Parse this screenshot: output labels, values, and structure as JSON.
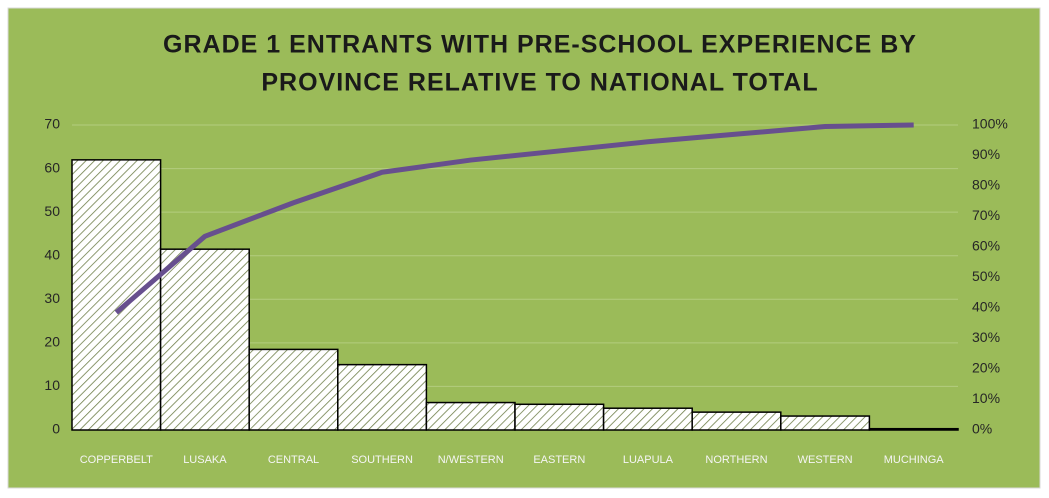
{
  "chart_data": {
    "type": "pareto",
    "title": [
      "GRADE 1 ENTRANTS WITH PRE-SCHOOL EXPERIENCE BY",
      "PROVINCE RELATIVE TO NATIONAL TOTAL"
    ],
    "categories": [
      "COPPERBELT",
      "LUSAKA",
      "CENTRAL",
      "SOUTHERN",
      "N/WESTERN",
      "EASTERN",
      "LUAPULA",
      "NORTHERN",
      "WESTERN",
      "MUCHINGA"
    ],
    "series": [
      {
        "type": "bar",
        "color": "#ffffff",
        "values": [
          62,
          41.5,
          18.5,
          15,
          6.3,
          5.9,
          5,
          4.1,
          3.2,
          0.3
        ]
      },
      {
        "type": "line",
        "axis": "y2",
        "color": "#674f8e",
        "values": [
          38.5,
          63.5,
          74.5,
          84.5,
          88.5,
          91.5,
          94.5,
          97,
          99.5,
          100
        ]
      }
    ],
    "ylim": [
      0,
      70
    ],
    "yticks": [
      0,
      10,
      20,
      30,
      40,
      50,
      60,
      70
    ],
    "y2lim": [
      0,
      100
    ],
    "y2ticks": [
      {
        "value": 0,
        "label": "0%"
      },
      {
        "value": 10,
        "label": "10%"
      },
      {
        "value": 20,
        "label": "20%"
      },
      {
        "value": 30,
        "label": "30%"
      },
      {
        "value": 40,
        "label": "40%"
      },
      {
        "value": 50,
        "label": "50%"
      },
      {
        "value": 60,
        "label": "60%"
      },
      {
        "value": 70,
        "label": "70%"
      },
      {
        "value": 80,
        "label": "80%"
      },
      {
        "value": 90,
        "label": "90%"
      },
      {
        "value": 100,
        "label": "100%"
      }
    ],
    "grid": true,
    "background": "#9bbb59"
  }
}
